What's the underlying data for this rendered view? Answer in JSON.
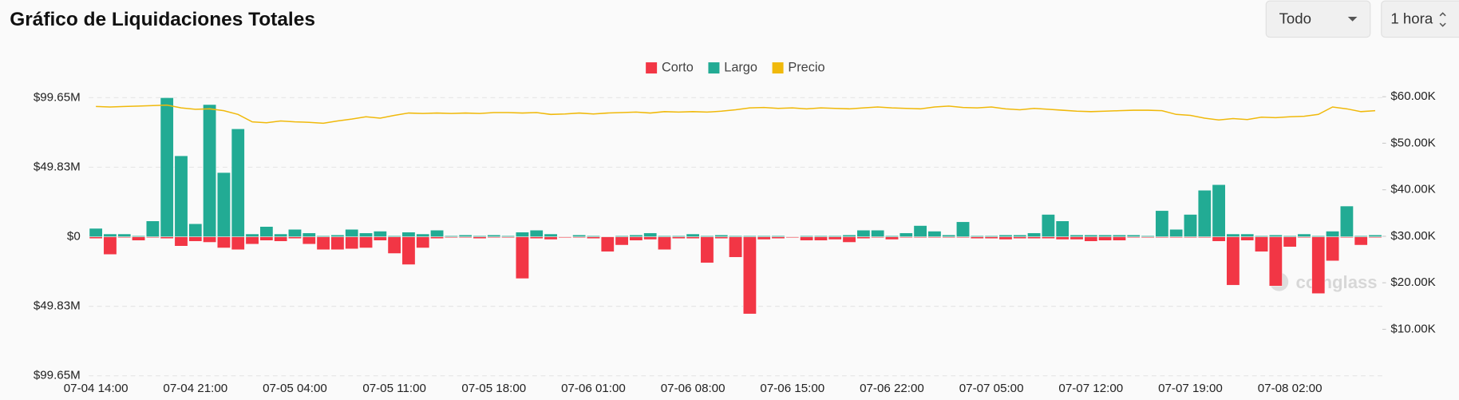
{
  "controls": {
    "exchange": "Todo",
    "interval": "1 hora"
  },
  "chart_data": {
    "type": "bar",
    "title": "Gráfico de Liquidaciones Totales",
    "watermark": "coinglass",
    "categories": [
      "07-04 14:00",
      null,
      null,
      null,
      null,
      null,
      null,
      "07-04 21:00",
      null,
      null,
      null,
      null,
      null,
      null,
      "07-05 04:00",
      null,
      null,
      null,
      null,
      null,
      null,
      "07-05 11:00",
      null,
      null,
      null,
      null,
      null,
      null,
      "07-05 18:00",
      null,
      null,
      null,
      null,
      null,
      null,
      "07-06 01:00",
      null,
      null,
      null,
      null,
      null,
      null,
      "07-06 08:00",
      null,
      null,
      null,
      null,
      null,
      null,
      "07-06 15:00",
      null,
      null,
      null,
      null,
      null,
      null,
      "07-06 22:00",
      null,
      null,
      null,
      null,
      null,
      null,
      "07-07 05:00",
      null,
      null,
      null,
      null,
      null,
      null,
      "07-07 12:00",
      null,
      null,
      null,
      null,
      null,
      null,
      "07-07 19:00",
      null,
      null,
      null,
      null,
      null,
      null,
      "07-08 02:00",
      null,
      null,
      null,
      null,
      null,
      null
    ],
    "series": [
      {
        "name": "Corto",
        "color": "#f23645",
        "values": [
          -1.3,
          -12.7,
          -0.7,
          -2.7,
          -0.7,
          -1.3,
          -6.7,
          -3.3,
          -4,
          -8,
          -9.3,
          -5.3,
          -2.7,
          -3.3,
          -1.3,
          -5.3,
          -9.3,
          -9.3,
          -8.7,
          -8,
          -2.7,
          -12,
          -20,
          -8,
          -1.3,
          -0.7,
          -0.7,
          -1.3,
          -0.7,
          -0.7,
          -30,
          -1.3,
          -2,
          -0.7,
          -0.7,
          -1.3,
          -10.7,
          -6,
          -2.7,
          -2,
          -9.3,
          -1.3,
          -1.3,
          -18.7,
          -1.3,
          -14.7,
          -55.3,
          -2,
          -1.3,
          -0.7,
          -2.7,
          -2.7,
          -2,
          -4,
          -1.3,
          -0.7,
          -2,
          -0.7,
          -0.7,
          -0.7,
          -0.7,
          -0.7,
          -1.3,
          -1.3,
          -2,
          -1.3,
          -1.3,
          -1.3,
          -2,
          -2,
          -3.3,
          -2.7,
          -2.7,
          -0.7,
          -0.7,
          -0.7,
          -0.7,
          -0.7,
          -0.7,
          -3.3,
          -34.7,
          -2.7,
          -10.7,
          -35.3,
          -7.3,
          -0.7,
          -40.7,
          -17.3,
          -0.7,
          -6,
          -0.7
        ]
      },
      {
        "name": "Largo",
        "color": "#22ab94",
        "values": [
          6,
          2,
          2,
          0.7,
          11.3,
          99.6,
          58,
          9.3,
          94.7,
          46,
          77.3,
          2,
          7.3,
          2,
          5.3,
          2.7,
          0.7,
          1.3,
          5.3,
          2.7,
          4,
          0.7,
          3.3,
          2,
          4.7,
          0.7,
          1.3,
          0.7,
          1.3,
          0.7,
          3.3,
          4.7,
          2,
          0.3,
          1.3,
          0.7,
          0.3,
          0.7,
          1.3,
          2.7,
          0.7,
          0.7,
          2,
          0.7,
          1.3,
          0.7,
          0.7,
          0.7,
          0.7,
          0.3,
          0.7,
          0.7,
          0.7,
          1.3,
          4.7,
          4.7,
          0.7,
          2.7,
          8,
          4,
          1.3,
          10.7,
          0.7,
          0.7,
          1.3,
          1.3,
          2.7,
          16,
          11.3,
          1.3,
          1.3,
          1.3,
          1.3,
          1.3,
          0.7,
          18.7,
          5.3,
          16,
          33.3,
          37.3,
          2,
          2,
          0.7,
          1.3,
          0.7,
          2,
          0.7,
          4,
          22,
          0.7,
          1.3
        ]
      },
      {
        "name": "Precio",
        "color": "#f0b90b",
        "type": "line",
        "axis": "y2",
        "values": [
          57.9,
          57.8,
          57.9,
          58.0,
          58.1,
          58.2,
          57.6,
          57.3,
          57.4,
          57.0,
          56.2,
          54.6,
          54.4,
          54.8,
          54.6,
          54.5,
          54.3,
          54.8,
          55.2,
          55.7,
          55.4,
          56.0,
          56.5,
          56.4,
          56.5,
          56.4,
          56.5,
          56.4,
          56.6,
          56.6,
          56.5,
          56.6,
          56.2,
          56.3,
          56.5,
          56.3,
          56.5,
          56.6,
          56.7,
          56.5,
          56.8,
          56.7,
          56.8,
          56.7,
          56.9,
          57.2,
          57.6,
          57.7,
          57.5,
          57.6,
          57.4,
          57.6,
          57.5,
          57.4,
          57.6,
          57.8,
          57.6,
          57.5,
          57.4,
          57.8,
          58.0,
          57.7,
          57.6,
          57.8,
          57.4,
          57.2,
          57.5,
          57.3,
          57.1,
          56.9,
          56.8,
          56.9,
          57.0,
          57.1,
          57.1,
          57.0,
          56.2,
          56.0,
          55.4,
          55.0,
          55.3,
          55.1,
          55.6,
          55.5,
          55.7,
          55.8,
          56.2,
          57.8,
          57.4,
          56.8,
          57.0
        ]
      }
    ],
    "ylim": [
      -99.65,
      99.65
    ],
    "yticks": [
      {
        "value": 99.65,
        "label": "$99.65M"
      },
      {
        "value": 49.83,
        "label": "$49.83M"
      },
      {
        "value": 0,
        "label": "$0"
      },
      {
        "value": -49.83,
        "label": "$49.83M"
      },
      {
        "value": -99.65,
        "label": "$99.65M"
      }
    ],
    "y2lim": [
      0,
      60
    ],
    "y2ticks": [
      {
        "value": 60,
        "label": "$60.00K"
      },
      {
        "value": 50,
        "label": "$50.00K"
      },
      {
        "value": 40,
        "label": "$40.00K"
      },
      {
        "value": 30,
        "label": "$30.00K"
      },
      {
        "value": 20,
        "label": "$20.00K"
      },
      {
        "value": 10,
        "label": "$10.00K"
      }
    ],
    "grid": true,
    "legend": "top"
  }
}
